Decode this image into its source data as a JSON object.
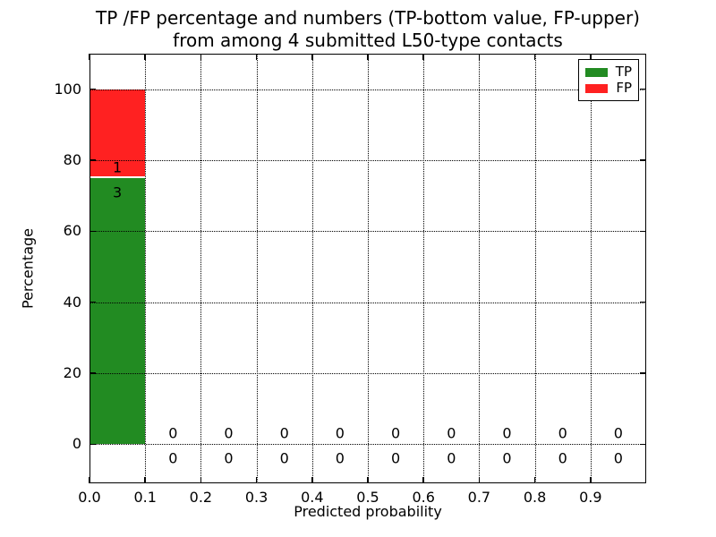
{
  "figure": {
    "title_line1": "TP /FP percentage and numbers (TP-bottom value, FP-upper)",
    "title_line2": "from among 4 submitted L50-type contacts"
  },
  "chart_data": {
    "type": "bar",
    "stacked": true,
    "title": "TP /FP percentage and numbers (TP-bottom value, FP-upper)\nfrom among 4 submitted L50-type contacts",
    "xlabel": "Predicted probability",
    "ylabel": "Percentage",
    "xlim": [
      0.0,
      1.0
    ],
    "ylim": [
      -11,
      110
    ],
    "grid": true,
    "grid_style": "dotted",
    "legend_position": "upper-right",
    "xtick_values": [
      0.0,
      0.1,
      0.2,
      0.3,
      0.4,
      0.5,
      0.6,
      0.7,
      0.8,
      0.9
    ],
    "xtick_labels": [
      "0.0",
      "0.1",
      "0.2",
      "0.3",
      "0.4",
      "0.5",
      "0.6",
      "0.7",
      "0.8",
      "0.9"
    ],
    "ytick_values": [
      0,
      20,
      40,
      60,
      80,
      100
    ],
    "ytick_labels": [
      "0",
      "20",
      "40",
      "60",
      "80",
      "100"
    ],
    "bin_edges": [
      0.0,
      0.1,
      0.2,
      0.3,
      0.4,
      0.5,
      0.6,
      0.7,
      0.8,
      0.9,
      1.0
    ],
    "bin_centers": [
      0.05,
      0.15,
      0.25,
      0.35,
      0.45,
      0.55,
      0.65,
      0.75,
      0.85,
      0.95
    ],
    "total_submitted": 4,
    "series": [
      {
        "name": "TP",
        "color": "#228b22",
        "position": "bottom",
        "percent": [
          75,
          0,
          0,
          0,
          0,
          0,
          0,
          0,
          0,
          0
        ],
        "counts": [
          3,
          0,
          0,
          0,
          0,
          0,
          0,
          0,
          0,
          0
        ]
      },
      {
        "name": "FP",
        "color": "#ff2121",
        "position": "top",
        "percent": [
          25,
          0,
          0,
          0,
          0,
          0,
          0,
          0,
          0,
          0
        ],
        "counts": [
          1,
          0,
          0,
          0,
          0,
          0,
          0,
          0,
          0,
          0
        ]
      }
    ]
  }
}
